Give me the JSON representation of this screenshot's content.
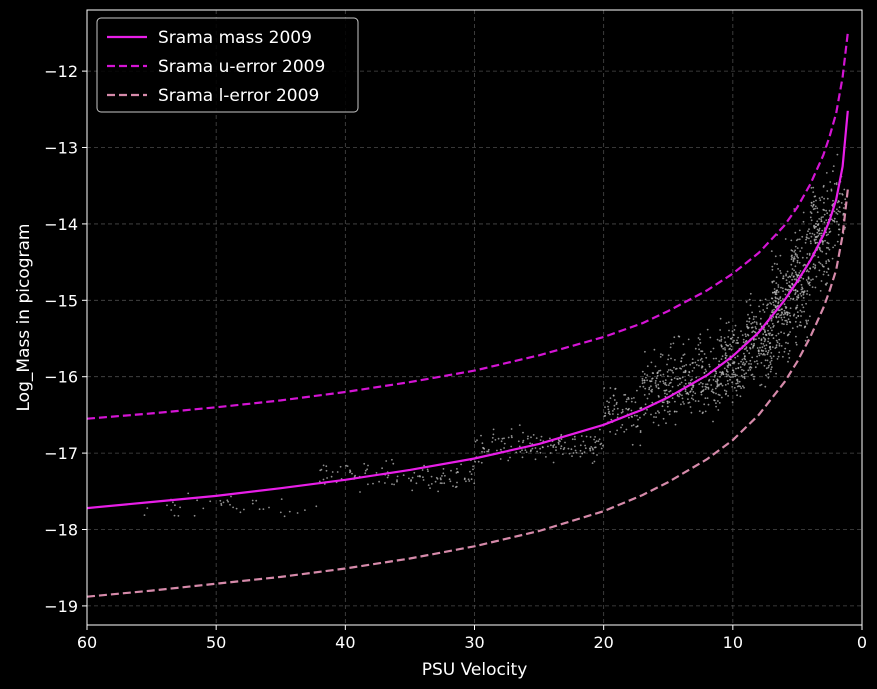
{
  "chart_data": {
    "type": "line",
    "xlabel": "PSU Velocity",
    "ylabel": "Log_Mass in picogram",
    "xlim": [
      60,
      0
    ],
    "ylim": [
      -19.25,
      -11.2
    ],
    "x_inverted": true,
    "grid": true,
    "legend_position": "top-left",
    "x_ticks": [
      60,
      50,
      40,
      30,
      20,
      10,
      0
    ],
    "y_ticks": [
      -19,
      -18,
      -17,
      -16,
      -15,
      -14,
      -13,
      -12
    ],
    "x_tick_labels": [
      "60",
      "50",
      "40",
      "30",
      "20",
      "10",
      "0"
    ],
    "y_tick_labels": [
      "−19",
      "−18",
      "−17",
      "−16",
      "−15",
      "−14",
      "−13",
      "−12"
    ],
    "series": [
      {
        "name": "Srama mass 2009",
        "style": "solid",
        "color": "#e81ee8",
        "x": [
          60,
          55,
          50,
          45,
          40,
          35,
          30,
          25,
          20,
          17,
          15,
          12,
          10,
          8,
          6,
          5,
          4,
          3,
          2.5,
          2,
          1.5,
          1.1
        ],
        "y": [
          -17.72,
          -17.64,
          -17.56,
          -17.46,
          -17.35,
          -17.22,
          -17.07,
          -16.88,
          -16.63,
          -16.43,
          -16.27,
          -15.98,
          -15.73,
          -15.42,
          -15.0,
          -14.75,
          -14.48,
          -14.15,
          -13.95,
          -13.68,
          -13.25,
          -12.52
        ]
      },
      {
        "name": "Srama u-error 2009",
        "style": "dashed",
        "color": "#d414d4",
        "x": [
          60,
          55,
          50,
          45,
          40,
          35,
          30,
          25,
          20,
          17,
          15,
          12,
          10,
          8,
          6,
          5,
          4,
          3,
          2.5,
          2,
          1.5,
          1.1
        ],
        "y": [
          -16.55,
          -16.48,
          -16.4,
          -16.31,
          -16.2,
          -16.07,
          -15.92,
          -15.72,
          -15.48,
          -15.3,
          -15.14,
          -14.87,
          -14.65,
          -14.38,
          -14.02,
          -13.78,
          -13.48,
          -13.1,
          -12.85,
          -12.55,
          -12.08,
          -11.5
        ]
      },
      {
        "name": "Srama l-error 2009",
        "style": "dashed",
        "color": "#d68aaa",
        "x": [
          60,
          55,
          50,
          45,
          40,
          35,
          30,
          25,
          20,
          17,
          15,
          12,
          10,
          8,
          6,
          5,
          4,
          3,
          2.5,
          2,
          1.5,
          1.1
        ],
        "y": [
          -18.88,
          -18.8,
          -18.71,
          -18.62,
          -18.51,
          -18.38,
          -18.22,
          -18.02,
          -17.76,
          -17.55,
          -17.38,
          -17.08,
          -16.83,
          -16.5,
          -16.07,
          -15.8,
          -15.48,
          -15.1,
          -14.87,
          -14.6,
          -14.15,
          -13.55
        ]
      }
    ],
    "scatter_clusters": [
      {
        "x": [
          57,
          42
        ],
        "y_center": -17.7,
        "spread": 0.15,
        "count": 40
      },
      {
        "x": [
          42,
          30
        ],
        "y_center": -17.3,
        "spread": 0.18,
        "count": 110
      },
      {
        "x": [
          30,
          20
        ],
        "y_center": -16.9,
        "spread": 0.2,
        "count": 150
      },
      {
        "x": [
          20,
          17
        ],
        "y_center": -16.45,
        "spread": 0.35,
        "count": 80
      },
      {
        "x": [
          17,
          15
        ],
        "y_center": -16.15,
        "spread": 0.45,
        "count": 100
      },
      {
        "x": [
          15,
          13
        ],
        "y_center": -16.1,
        "spread": 0.5,
        "count": 110
      },
      {
        "x": [
          13,
          11
        ],
        "y_center": -16.0,
        "spread": 0.5,
        "count": 110
      },
      {
        "x": [
          11,
          9
        ],
        "y_center": -15.8,
        "spread": 0.45,
        "count": 160
      },
      {
        "x": [
          9,
          7
        ],
        "y_center": -15.5,
        "spread": 0.6,
        "count": 180
      },
      {
        "x": [
          7,
          5.5
        ],
        "y_center": -15.1,
        "spread": 0.65,
        "count": 180
      },
      {
        "x": [
          5.5,
          4
        ],
        "y_center": -14.7,
        "spread": 0.7,
        "count": 170
      },
      {
        "x": [
          4,
          2.5
        ],
        "y_center": -14.2,
        "spread": 0.7,
        "count": 160
      },
      {
        "x": [
          2.5,
          1.3
        ],
        "y_center": -13.8,
        "spread": 0.5,
        "count": 60
      }
    ]
  }
}
